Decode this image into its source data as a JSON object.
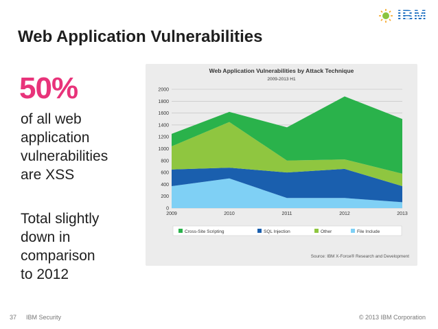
{
  "header": {
    "brand": "IBM"
  },
  "slide": {
    "title": "Web Application Vulnerabilities",
    "stat": "50%",
    "lines_a": [
      "of all web",
      "application",
      "vulnerabilities",
      "are XSS"
    ],
    "lines_b": [
      "Total slightly",
      "down in",
      "comparison",
      "to 2012"
    ]
  },
  "footer": {
    "page": "37",
    "brand": "IBM Security",
    "copyright": "© 2013 IBM Corporation"
  },
  "chart_data": {
    "type": "area",
    "stacked": true,
    "title": "Web Application Vulnerabilities by Attack Technique",
    "subtitle": "2009-2013 H1",
    "x": [
      "2009",
      "2010",
      "2011",
      "2012",
      "2013"
    ],
    "ylim": [
      0,
      2000
    ],
    "yticks": [
      0,
      200,
      400,
      600,
      800,
      1000,
      1200,
      1400,
      1600,
      1800,
      2000
    ],
    "grid": true,
    "legend": "bottom",
    "source": "Source: IBM X-Force® Research and Development",
    "series": [
      {
        "name": "File Include",
        "color": "#7fd0f5",
        "values": [
          370,
          500,
          170,
          170,
          100
        ]
      },
      {
        "name": "SQL Injection",
        "color": "#1a5fae",
        "values": [
          280,
          180,
          430,
          490,
          270
        ]
      },
      {
        "name": "Other",
        "color": "#8fc640",
        "values": [
          390,
          770,
          200,
          160,
          210
        ]
      },
      {
        "name": "Cross-Site Scripting",
        "color": "#2ab24b",
        "values": [
          210,
          170,
          560,
          1060,
          920
        ]
      }
    ],
    "legend_order": [
      "Cross-Site Scripting",
      "SQL Injection",
      "Other",
      "File Include"
    ]
  }
}
